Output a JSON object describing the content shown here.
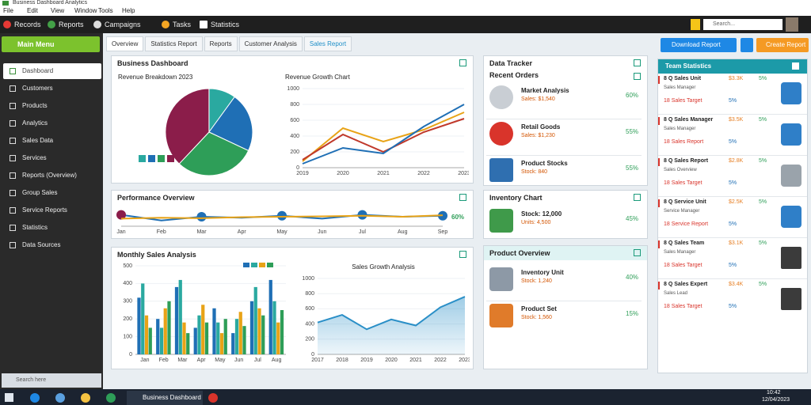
{
  "titlebar": {
    "title": "Business Dashboard Analytics"
  },
  "menu": [
    "File",
    "Edit",
    "View",
    "Window",
    "Tools",
    "Help"
  ],
  "toolbar": [
    "Records",
    "Reports",
    "Campaigns",
    "Tasks",
    "Statistics"
  ],
  "search_placeholder": "Search...",
  "sidebar": {
    "button": "Main Menu",
    "items": [
      "Dashboard",
      "Customers",
      "Products",
      "Analytics",
      "Sales Data",
      "Services",
      "Reports (Overview)",
      "Group Sales",
      "Service Reports",
      "Statistics",
      "Data Sources"
    ],
    "search": "Search here"
  },
  "tabs": [
    "Overview",
    "Statistics Report",
    "Reports",
    "Customer Analysis",
    "Sales Report"
  ],
  "actions": [
    "Download Report",
    "Create Report"
  ],
  "overview": {
    "title": "Business Dashboard",
    "charts": [
      {
        "type": "pie",
        "title": "Revenue Breakdown 2023",
        "values": [
          10,
          22,
          30,
          38
        ],
        "colors": [
          "#2aa9a0",
          "#1f6fb5",
          "#2e9e58",
          "#8b1d4a"
        ]
      },
      {
        "type": "line",
        "title": "Revenue Growth Chart",
        "categories": [
          "2019",
          "2020",
          "2021",
          "2022",
          "2023"
        ],
        "ylim": [
          0,
          1000
        ],
        "yticks": [
          0,
          200,
          400,
          600,
          800,
          1000
        ],
        "series": [
          {
            "color": "#e8a317",
            "values": [
              80,
              500,
              330,
              480,
              700
            ]
          },
          {
            "color": "#c0392b",
            "values": [
              100,
              420,
              200,
              450,
              620
            ]
          },
          {
            "color": "#1f6fb5",
            "values": [
              50,
              250,
              180,
              520,
              800
            ]
          }
        ]
      }
    ]
  },
  "performance": {
    "title": "Performance Overview",
    "annotation": "60%",
    "chart": {
      "type": "line",
      "markers": true,
      "categories": [
        "Jan",
        "Feb",
        "Mar",
        "Apr",
        "May",
        "Jun",
        "Jul",
        "Aug",
        "Sep"
      ],
      "ylim": [
        0,
        100
      ],
      "series": [
        {
          "color": "#1f6fb5",
          "values": [
            60,
            30,
            50,
            45,
            55,
            40,
            60,
            50,
            55
          ]
        },
        {
          "color": "#e8a317",
          "values": [
            40,
            45,
            42,
            48,
            50,
            52,
            55,
            50,
            58
          ]
        }
      ]
    }
  },
  "sales": {
    "title": "Monthly Sales Analysis",
    "charts": [
      {
        "type": "bar",
        "categories": [
          "Jan",
          "Feb",
          "Mar",
          "Apr",
          "May",
          "Jun",
          "Jul",
          "Aug"
        ],
        "ylim": [
          0,
          500
        ],
        "yticks": [
          0,
          100,
          200,
          300,
          400,
          500
        ],
        "series": [
          {
            "color": "#1f6fb5",
            "values": [
              320,
              200,
              380,
              150,
              260,
              120,
              300,
              420
            ]
          },
          {
            "color": "#2aa9a0",
            "values": [
              400,
              150,
              420,
              220,
              180,
              200,
              380,
              300
            ]
          },
          {
            "color": "#e8a317",
            "values": [
              220,
              260,
              180,
              280,
              120,
              240,
              260,
              180
            ]
          },
          {
            "color": "#2e9e58",
            "values": [
              150,
              300,
              120,
              180,
              200,
              160,
              220,
              250
            ]
          }
        ]
      },
      {
        "type": "area",
        "title": "Sales Growth Analysis",
        "categories": [
          "2017",
          "2018",
          "2019",
          "2020",
          "2021",
          "2022",
          "2023"
        ],
        "ylim": [
          0,
          1000
        ],
        "yticks": [
          0,
          200,
          400,
          600,
          800,
          1000
        ],
        "series": [
          {
            "color": "#2a8fc7",
            "values": [
              420,
              520,
              330,
              460,
              380,
              620,
              760
            ]
          }
        ]
      }
    ]
  },
  "orders": {
    "header": "Data Tracker",
    "title": "Recent Orders",
    "items": [
      {
        "name": "Market Analysis",
        "detail": "Sales: $1,540",
        "value": "60%"
      },
      {
        "name": "Retail Goods",
        "detail": "Sales: $1,230",
        "value": "55%"
      },
      {
        "name": "Product Stocks",
        "detail": "Stock: 840",
        "value": "55%"
      }
    ]
  },
  "inventory": {
    "title": "Inventory Chart",
    "items": [
      {
        "name": "Stock: 12,000",
        "detail": "Units: 4,500",
        "value": "45%"
      }
    ]
  },
  "products": {
    "title": "Product Overview",
    "items": [
      {
        "name": "Inventory Unit",
        "detail": "Stock: 1,240",
        "value": "40%"
      },
      {
        "name": "Product Set",
        "detail": "Stock: 1,560",
        "value": "15%"
      }
    ]
  },
  "team": {
    "title": "Team Statistics",
    "rows": [
      {
        "name": "8 Q Sales Unit",
        "p1": "$3.3K",
        "p2": "5%",
        "role": "Sales Manager",
        "t1": "18 Sales Target",
        "t2": "5%"
      },
      {
        "name": "8 Q Sales Manager",
        "p1": "$3.5K",
        "p2": "5%",
        "role": "Sales Manager",
        "t1": "18 Sales Report",
        "t2": "5%"
      },
      {
        "name": "8 Q Sales Report",
        "p1": "$2.8K",
        "p2": "5%",
        "role": "Sales Overview",
        "t1": "18 Sales Target",
        "t2": "5%"
      },
      {
        "name": "8 Q Service Unit",
        "p1": "$2.5K",
        "p2": "5%",
        "role": "Service Manager",
        "t1": "18 Service Report",
        "t2": "5%"
      },
      {
        "name": "8 Q Sales Team",
        "p1": "$3.1K",
        "p2": "5%",
        "role": "Sales Manager",
        "t1": "18 Sales Target",
        "t2": "5%"
      },
      {
        "name": "8 Q Sales Expert",
        "p1": "$3.4K",
        "p2": "5%",
        "role": "Sales Lead",
        "t1": "18 Sales Target",
        "t2": "5%"
      }
    ]
  },
  "taskbar": {
    "app": "Business Dashboard",
    "time": "10:42",
    "date": "12/04/2023"
  }
}
